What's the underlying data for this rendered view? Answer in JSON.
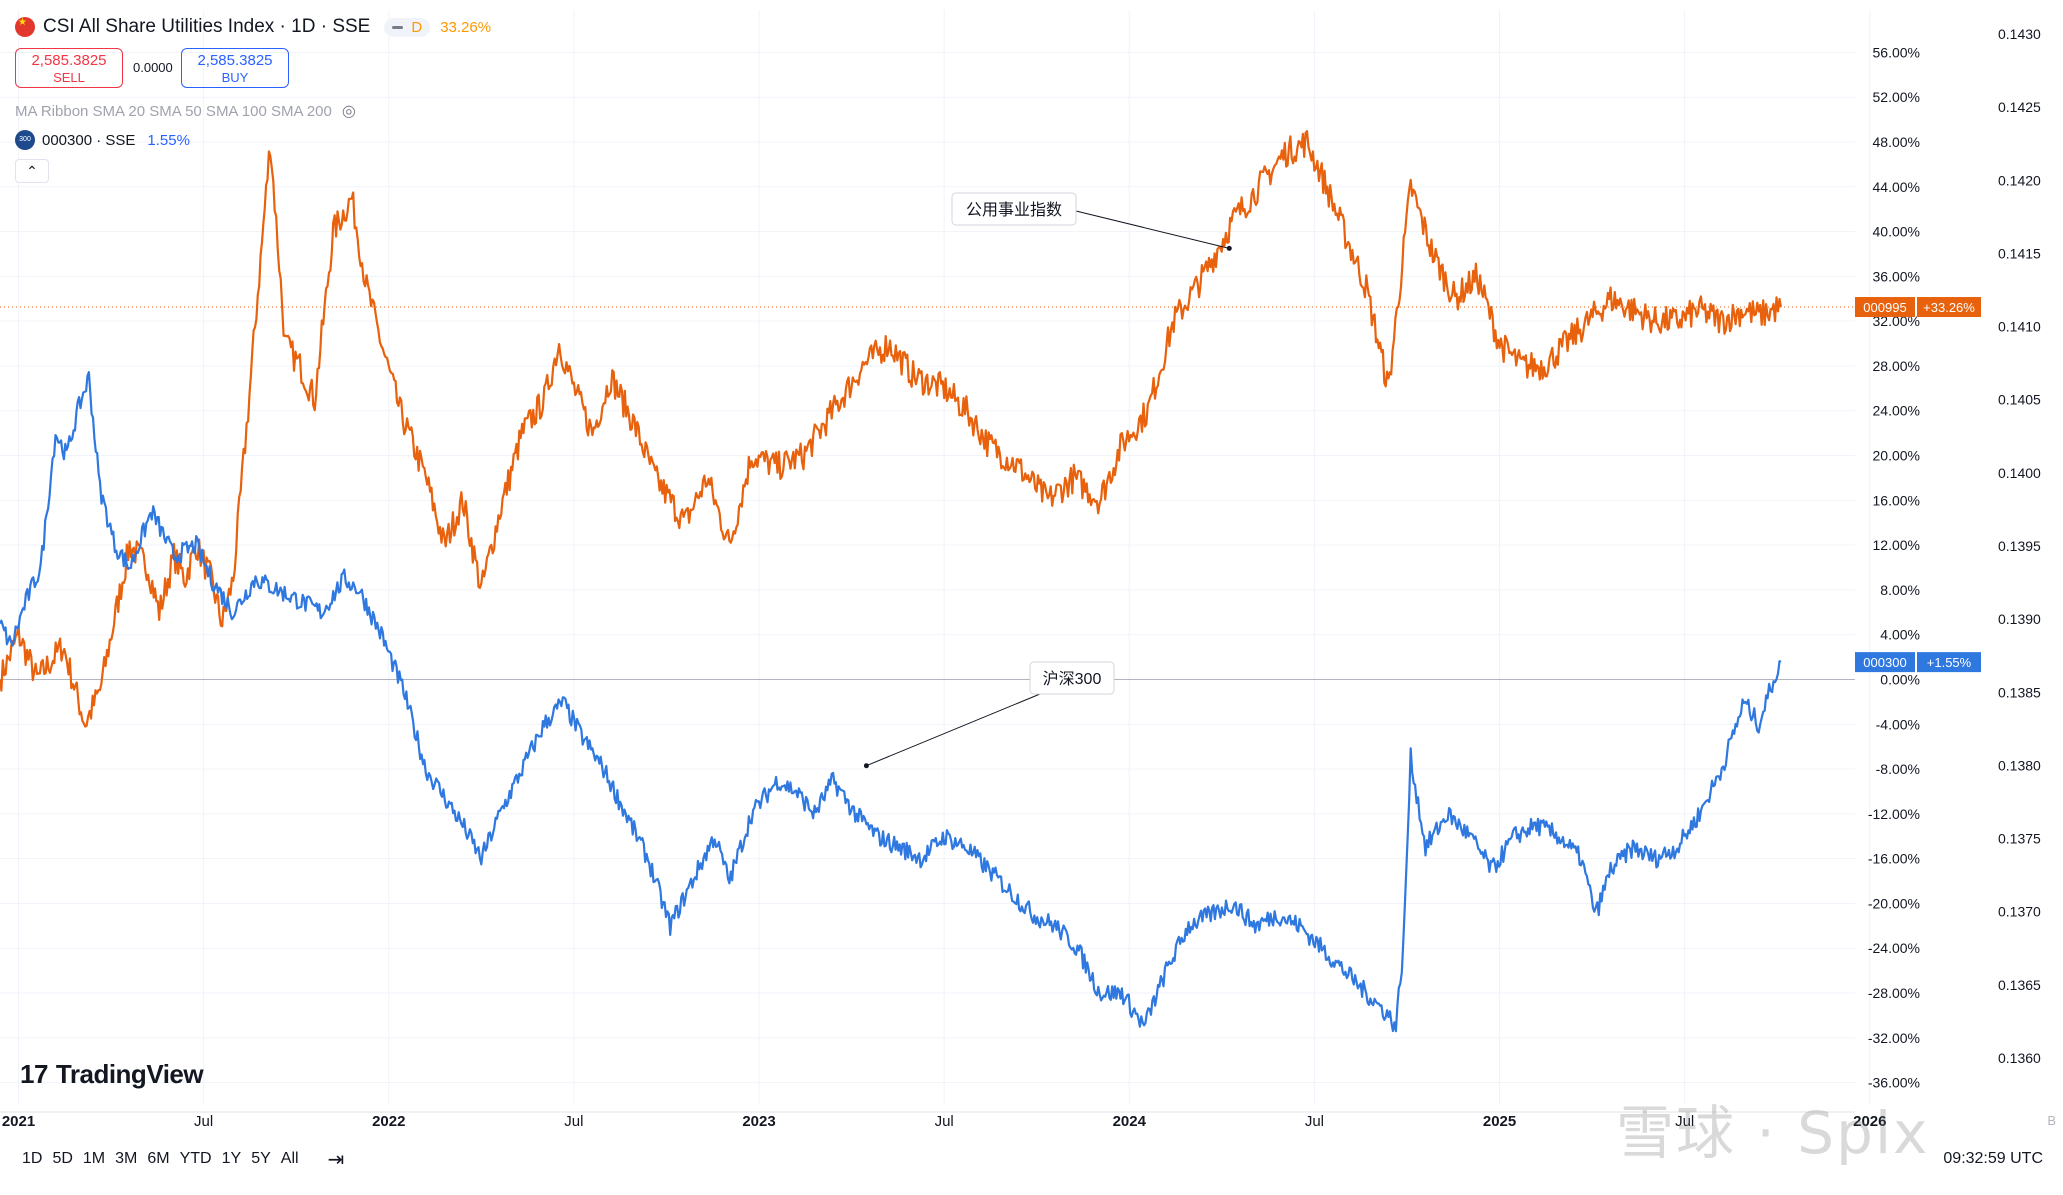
{
  "header": {
    "title": "CSI All Share Utilities Index · 1D · SSE",
    "interval_badge": "D",
    "change": "33.26%",
    "sell_price": "2,585.3825",
    "sell_label": "SELL",
    "spread": "0.0000",
    "buy_price": "2,585.3825",
    "buy_label": "BUY",
    "indicator": "MA Ribbon SMA 20 SMA 50 SMA 100 SMA 200",
    "compare_symbol": "000300 · SSE",
    "compare_badge": "300",
    "compare_change": "1.55%",
    "collapse_glyph": "⌃"
  },
  "logo": {
    "text": "TradingView",
    "mark": "17"
  },
  "ranges": [
    "1D",
    "5D",
    "1M",
    "3M",
    "6M",
    "YTD",
    "1Y",
    "5Y",
    "All"
  ],
  "time": "09:32:59 UTC",
  "watermark": "雪球 · Splx",
  "colors": {
    "utilities": "#e8610c",
    "hs300": "#2f78e0",
    "grid": "#f0f3fa"
  },
  "chart_data": {
    "type": "line",
    "title": "CSI All Share Utilities Index · 1D · SSE",
    "x_range": [
      2020.95,
      2025.96
    ],
    "x_ticks": [
      {
        "t": 2021.0,
        "label": "2021"
      },
      {
        "t": 2021.5,
        "label": "Jul"
      },
      {
        "t": 2022.0,
        "label": "2022"
      },
      {
        "t": 2022.5,
        "label": "Jul"
      },
      {
        "t": 2023.0,
        "label": "2023"
      },
      {
        "t": 2023.5,
        "label": "Jul"
      },
      {
        "t": 2024.0,
        "label": "2024"
      },
      {
        "t": 2024.5,
        "label": "Jul"
      },
      {
        "t": 2025.0,
        "label": "2025"
      },
      {
        "t": 2025.5,
        "label": "Jul"
      },
      {
        "t": 2026.0,
        "label": "2026"
      }
    ],
    "y_range_percent": [
      -38,
      58
    ],
    "y_ticks_percent": [
      56,
      52,
      48,
      44,
      40,
      36,
      32,
      28,
      24,
      20,
      16,
      12,
      8,
      4,
      0,
      -4,
      -8,
      -12,
      -16,
      -20,
      -24,
      -28,
      -32,
      -36
    ],
    "right_axis": [
      "0.1430",
      "0.1425",
      "0.1420",
      "0.1415",
      "0.1410",
      "0.1405",
      "0.1400",
      "0.1395",
      "0.1390",
      "0.1385",
      "0.1380",
      "0.1375",
      "0.1370",
      "0.1365",
      "0.1360"
    ],
    "right_axis_extra": "B",
    "series": [
      {
        "name": "公用事业指数",
        "symbol": "000995",
        "last_label": "+33.26%",
        "color": "#e8610c",
        "points": [
          [
            2020.95,
            0
          ],
          [
            2021.0,
            4
          ],
          [
            2021.05,
            0
          ],
          [
            2021.12,
            3
          ],
          [
            2021.18,
            -4
          ],
          [
            2021.22,
            -1
          ],
          [
            2021.3,
            12
          ],
          [
            2021.35,
            10
          ],
          [
            2021.38,
            6
          ],
          [
            2021.42,
            11
          ],
          [
            2021.45,
            9
          ],
          [
            2021.48,
            12
          ],
          [
            2021.52,
            9
          ],
          [
            2021.55,
            5
          ],
          [
            2021.58,
            9
          ],
          [
            2021.62,
            24
          ],
          [
            2021.65,
            36
          ],
          [
            2021.68,
            48
          ],
          [
            2021.72,
            30
          ],
          [
            2021.76,
            28
          ],
          [
            2021.8,
            25
          ],
          [
            2021.85,
            40
          ],
          [
            2021.9,
            43
          ],
          [
            2021.94,
            35
          ],
          [
            2021.98,
            30
          ],
          [
            2022.03,
            24
          ],
          [
            2022.1,
            18
          ],
          [
            2022.15,
            12
          ],
          [
            2022.2,
            16
          ],
          [
            2022.25,
            8
          ],
          [
            2022.3,
            15
          ],
          [
            2022.36,
            22
          ],
          [
            2022.42,
            25
          ],
          [
            2022.46,
            30
          ],
          [
            2022.5,
            26
          ],
          [
            2022.55,
            22
          ],
          [
            2022.6,
            27
          ],
          [
            2022.66,
            23
          ],
          [
            2022.72,
            18
          ],
          [
            2022.8,
            14
          ],
          [
            2022.86,
            18
          ],
          [
            2022.92,
            12
          ],
          [
            2022.98,
            20
          ],
          [
            2023.05,
            19
          ],
          [
            2023.12,
            20
          ],
          [
            2023.2,
            24
          ],
          [
            2023.28,
            28
          ],
          [
            2023.35,
            30
          ],
          [
            2023.42,
            27
          ],
          [
            2023.5,
            26
          ],
          [
            2023.56,
            24
          ],
          [
            2023.62,
            21
          ],
          [
            2023.7,
            19
          ],
          [
            2023.78,
            16
          ],
          [
            2023.85,
            18
          ],
          [
            2023.92,
            16
          ],
          [
            2023.98,
            21
          ],
          [
            2024.05,
            24
          ],
          [
            2024.12,
            32
          ],
          [
            2024.2,
            36
          ],
          [
            2024.28,
            41
          ],
          [
            2024.35,
            44
          ],
          [
            2024.42,
            47
          ],
          [
            2024.48,
            48
          ],
          [
            2024.52,
            45
          ],
          [
            2024.58,
            40
          ],
          [
            2024.64,
            35
          ],
          [
            2024.7,
            26
          ],
          [
            2024.76,
            44
          ],
          [
            2024.82,
            38
          ],
          [
            2024.88,
            34
          ],
          [
            2024.94,
            36
          ],
          [
            2025.0,
            30
          ],
          [
            2025.06,
            28
          ],
          [
            2025.12,
            28
          ],
          [
            2025.18,
            30
          ],
          [
            2025.24,
            32
          ],
          [
            2025.3,
            34
          ],
          [
            2025.36,
            33
          ],
          [
            2025.42,
            32
          ],
          [
            2025.48,
            32
          ],
          [
            2025.54,
            33
          ],
          [
            2025.6,
            32
          ],
          [
            2025.66,
            33
          ],
          [
            2025.7,
            32.5
          ],
          [
            2025.74,
            33
          ],
          [
            2025.76,
            33.26
          ]
        ]
      },
      {
        "name": "沪深300",
        "symbol": "000300",
        "last_label": "+1.55%",
        "color": "#2f78e0",
        "points": [
          [
            2020.95,
            5
          ],
          [
            2020.98,
            3
          ],
          [
            2021.02,
            7
          ],
          [
            2021.06,
            10
          ],
          [
            2021.1,
            22
          ],
          [
            2021.13,
            20
          ],
          [
            2021.16,
            24
          ],
          [
            2021.19,
            27
          ],
          [
            2021.22,
            17
          ],
          [
            2021.26,
            12
          ],
          [
            2021.3,
            10
          ],
          [
            2021.36,
            15
          ],
          [
            2021.42,
            11
          ],
          [
            2021.48,
            12
          ],
          [
            2021.52,
            9
          ],
          [
            2021.58,
            6
          ],
          [
            2021.64,
            9
          ],
          [
            2021.7,
            8
          ],
          [
            2021.76,
            7
          ],
          [
            2021.82,
            6
          ],
          [
            2021.88,
            9
          ],
          [
            2021.92,
            8
          ],
          [
            2021.98,
            4
          ],
          [
            2022.04,
            -1
          ],
          [
            2022.1,
            -8
          ],
          [
            2022.14,
            -10
          ],
          [
            2022.2,
            -13
          ],
          [
            2022.25,
            -16
          ],
          [
            2022.3,
            -12
          ],
          [
            2022.36,
            -8
          ],
          [
            2022.42,
            -4
          ],
          [
            2022.47,
            -2
          ],
          [
            2022.52,
            -5
          ],
          [
            2022.58,
            -8
          ],
          [
            2022.64,
            -12
          ],
          [
            2022.7,
            -16
          ],
          [
            2022.76,
            -22
          ],
          [
            2022.82,
            -18
          ],
          [
            2022.88,
            -14
          ],
          [
            2022.92,
            -18
          ],
          [
            2022.98,
            -12
          ],
          [
            2023.05,
            -9
          ],
          [
            2023.1,
            -10
          ],
          [
            2023.15,
            -12
          ],
          [
            2023.2,
            -9
          ],
          [
            2023.26,
            -12
          ],
          [
            2023.32,
            -14
          ],
          [
            2023.38,
            -15
          ],
          [
            2023.44,
            -16
          ],
          [
            2023.5,
            -14
          ],
          [
            2023.56,
            -15
          ],
          [
            2023.62,
            -17
          ],
          [
            2023.68,
            -19
          ],
          [
            2023.74,
            -21
          ],
          [
            2023.8,
            -22
          ],
          [
            2023.86,
            -24
          ],
          [
            2023.92,
            -28
          ],
          [
            2023.98,
            -28
          ],
          [
            2024.04,
            -31
          ],
          [
            2024.1,
            -26
          ],
          [
            2024.16,
            -22
          ],
          [
            2024.22,
            -21
          ],
          [
            2024.28,
            -20
          ],
          [
            2024.34,
            -22
          ],
          [
            2024.4,
            -21
          ],
          [
            2024.46,
            -22
          ],
          [
            2024.52,
            -24
          ],
          [
            2024.58,
            -26
          ],
          [
            2024.64,
            -28
          ],
          [
            2024.7,
            -30
          ],
          [
            2024.72,
            -31
          ],
          [
            2024.74,
            -24
          ],
          [
            2024.76,
            -7
          ],
          [
            2024.8,
            -15
          ],
          [
            2024.86,
            -12
          ],
          [
            2024.92,
            -14
          ],
          [
            2024.98,
            -17
          ],
          [
            2025.04,
            -14
          ],
          [
            2025.1,
            -13
          ],
          [
            2025.16,
            -14
          ],
          [
            2025.22,
            -16
          ],
          [
            2025.26,
            -21
          ],
          [
            2025.3,
            -17
          ],
          [
            2025.36,
            -15
          ],
          [
            2025.42,
            -16
          ],
          [
            2025.48,
            -15
          ],
          [
            2025.54,
            -12
          ],
          [
            2025.6,
            -8
          ],
          [
            2025.66,
            -2
          ],
          [
            2025.7,
            -4
          ],
          [
            2025.74,
            0
          ],
          [
            2025.76,
            1.55
          ]
        ]
      }
    ],
    "annotations": [
      {
        "text": "公用事业指数",
        "series": 0,
        "t": 2024.27,
        "v": 38.5
      },
      {
        "text": "沪深300",
        "series": 1,
        "t": 2023.29,
        "v": -7.7
      }
    ]
  }
}
